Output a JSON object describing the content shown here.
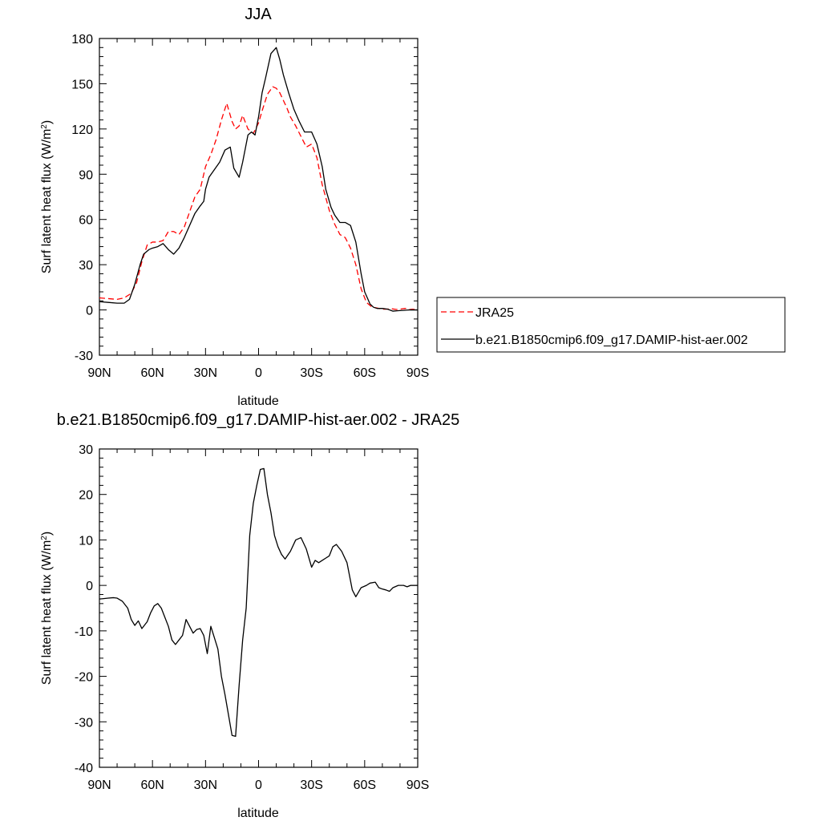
{
  "legend": {
    "entries": [
      {
        "label": "JRA25",
        "color": "#ff0000",
        "dashed": true
      },
      {
        "label": "b.e21.B1850cmip6.f09_g17.DAMIP-hist-aer.002",
        "color": "#000000",
        "dashed": false
      }
    ]
  },
  "chart_data": [
    {
      "type": "line",
      "title": "JJA",
      "xlabel": "latitude",
      "ylabel": "Surf latent heat flux (W/m",
      "ylabel_sup": "2",
      "ylabel_close": ")",
      "xlim": [
        90,
        -90
      ],
      "ylim": [
        -30,
        180
      ],
      "xticks": [
        90,
        60,
        30,
        0,
        -30,
        -60,
        -90
      ],
      "xtick_labels": [
        "90N",
        "60N",
        "30N",
        "0",
        "30S",
        "60S",
        "90S"
      ],
      "yticks": [
        -30,
        0,
        30,
        60,
        90,
        120,
        150,
        180
      ],
      "ytick_labels": [
        "-30",
        "0",
        "30",
        "60",
        "90",
        "120",
        "150",
        "180"
      ],
      "series": [
        {
          "name": "JRA25",
          "color": "#ff0000",
          "dashed": true,
          "x": [
            90,
            85,
            80,
            76,
            72,
            69,
            66,
            63,
            60,
            57,
            54,
            51,
            48,
            45,
            42,
            39,
            36,
            33,
            30,
            27,
            24,
            21,
            18,
            15,
            13,
            11,
            9,
            6,
            3,
            0,
            -2,
            -5,
            -8,
            -10,
            -12,
            -14,
            -16,
            -18,
            -21,
            -24,
            -27,
            -30,
            -33,
            -36,
            -40,
            -43,
            -46,
            -49,
            -52,
            -55,
            -58,
            -61,
            -64,
            -66,
            -68,
            -70,
            -72,
            -75,
            -78,
            -80,
            -83,
            -85,
            -87,
            -90
          ],
          "values": [
            8,
            7.5,
            7,
            8,
            11,
            18,
            32,
            43,
            45,
            45,
            46,
            52,
            52,
            50,
            55,
            65,
            75,
            80,
            95,
            103,
            113,
            126,
            137,
            125,
            120,
            122,
            129,
            120,
            117,
            124,
            132,
            143,
            148,
            147,
            144,
            139,
            134,
            128,
            122,
            115,
            108,
            110,
            101,
            83,
            66,
            57,
            50,
            48,
            41,
            30,
            14,
            5,
            2,
            1.5,
            1,
            0.5,
            0.5,
            0.8,
            0.3,
            0.5,
            1,
            0.2,
            0.5,
            0
          ]
        },
        {
          "name": "b.e21.B1850cmip6.f09_g17.DAMIP-hist-aer.002",
          "color": "#000000",
          "dashed": false,
          "x": [
            90,
            85,
            80,
            76,
            73,
            70,
            67,
            65,
            62,
            60,
            57,
            54,
            51,
            48,
            45,
            42,
            39,
            36,
            33,
            31,
            30,
            28,
            25,
            22,
            19,
            16,
            14,
            11,
            9,
            6,
            4,
            2,
            0,
            -2,
            -4,
            -7,
            -10,
            -12,
            -14,
            -17,
            -20,
            -23,
            -26,
            -30,
            -33,
            -36,
            -38,
            -41,
            -43,
            -46,
            -49,
            -52,
            -55,
            -58,
            -60,
            -63,
            -65,
            -67,
            -70,
            -73,
            -76,
            -79,
            -82,
            -85,
            -90
          ],
          "values": [
            5.5,
            5,
            4.5,
            4.5,
            7,
            17,
            30,
            37,
            40,
            41,
            42,
            44,
            40,
            37,
            41,
            48,
            56,
            64,
            69,
            72,
            80,
            88,
            93,
            98,
            106,
            108,
            94,
            88,
            98,
            116,
            118,
            116,
            128,
            144,
            154,
            170,
            174,
            166,
            156,
            144,
            133,
            125,
            118,
            118,
            110,
            95,
            80,
            68,
            63,
            58,
            58,
            56,
            45,
            24,
            12,
            4,
            1.8,
            1,
            1,
            0.5,
            -0.8,
            -0.5,
            -0.3,
            0,
            0
          ]
        }
      ]
    },
    {
      "type": "line",
      "title": "b.e21.B1850cmip6.f09_g17.DAMIP-hist-aer.002 - JRA25",
      "xlabel": "latitude",
      "ylabel": "Surf latent heat flux (W/m",
      "ylabel_sup": "2",
      "ylabel_close": ")",
      "xlim": [
        90,
        -90
      ],
      "ylim": [
        -40,
        30
      ],
      "xticks": [
        90,
        60,
        30,
        0,
        -30,
        -60,
        -90
      ],
      "xtick_labels": [
        "90N",
        "60N",
        "30N",
        "0",
        "30S",
        "60S",
        "90S"
      ],
      "yticks": [
        -40,
        -30,
        -20,
        -10,
        0,
        10,
        20,
        30
      ],
      "ytick_labels": [
        "-40",
        "-30",
        "-20",
        "-10",
        "0",
        "10",
        "20",
        "30"
      ],
      "series": [
        {
          "name": "b.e21.B1850cmip6.f09_g17.DAMIP-hist-aer.002 - JRA25",
          "color": "#000000",
          "dashed": false,
          "x": [
            90,
            85,
            82,
            80,
            77,
            74,
            72,
            70,
            68,
            66,
            63,
            61,
            59,
            57,
            55,
            53,
            51,
            49,
            47,
            45,
            43,
            41,
            39,
            37,
            35,
            33,
            31,
            29,
            27,
            25,
            23,
            21,
            19,
            17,
            15,
            13,
            11,
            9,
            7,
            5,
            3,
            1,
            -1,
            -3,
            -5,
            -7,
            -9,
            -11,
            -13,
            -15,
            -18,
            -21,
            -24,
            -27,
            -30,
            -32,
            -34,
            -36,
            -38,
            -40,
            -42,
            -44,
            -47,
            -50,
            -53,
            -55,
            -58,
            -61,
            -63,
            -66,
            -68,
            -70,
            -72,
            -74,
            -76,
            -79,
            -82,
            -84,
            -86,
            -88,
            -90
          ],
          "values": [
            -3,
            -2.8,
            -2.7,
            -2.8,
            -3.5,
            -5,
            -7.5,
            -8.8,
            -7.8,
            -9.5,
            -8,
            -6,
            -4.5,
            -4,
            -5,
            -7,
            -9,
            -12,
            -13,
            -12,
            -11,
            -7.5,
            -9,
            -10.5,
            -9.7,
            -9.5,
            -11,
            -15,
            -9,
            -11.5,
            -14,
            -20,
            -24,
            -28.5,
            -33,
            -33.2,
            -22,
            -12,
            -5,
            11,
            18,
            22,
            25.5,
            25.7,
            20,
            16,
            11,
            8.5,
            6.8,
            5.8,
            7.5,
            10,
            10.5,
            8,
            4,
            5.5,
            5,
            5.5,
            6,
            6.5,
            8.5,
            9,
            7.5,
            5,
            -1,
            -2.5,
            -0.5,
            0,
            0.5,
            0.7,
            -0.5,
            -0.8,
            -1,
            -1.3,
            -0.5,
            0,
            0,
            -0.3,
            0,
            0,
            0
          ]
        }
      ]
    }
  ]
}
